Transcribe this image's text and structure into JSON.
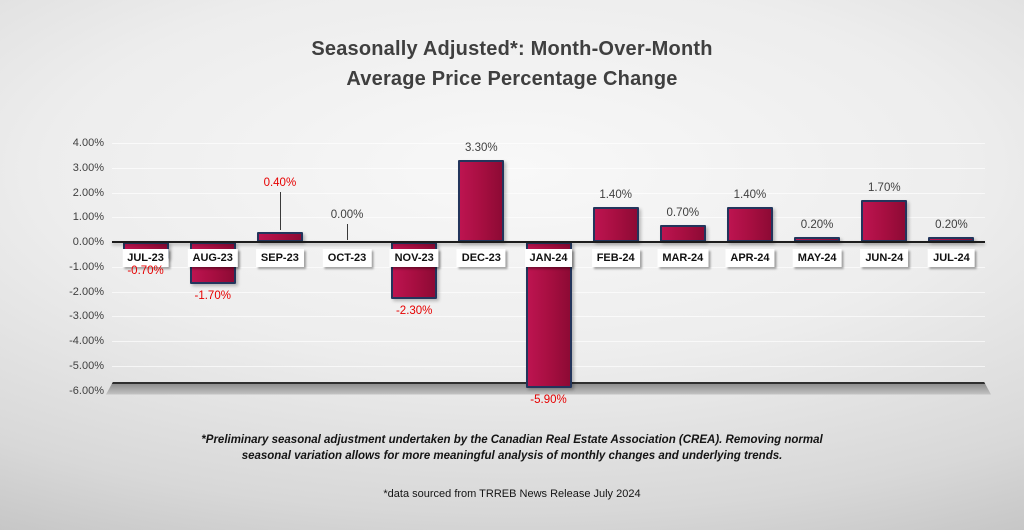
{
  "chart_data": {
    "type": "bar",
    "title_line1": "Seasonally Adjusted*:  Month-Over-Month",
    "title_line2": "Average Price Percentage Change",
    "categories": [
      "JUL-23",
      "AUG-23",
      "SEP-23",
      "OCT-23",
      "NOV-23",
      "DEC-23",
      "JAN-24",
      "FEB-24",
      "MAR-24",
      "APR-24",
      "MAY-24",
      "JUN-24",
      "JUL-24"
    ],
    "values": [
      -0.7,
      -1.7,
      0.4,
      0.0,
      -2.3,
      3.3,
      -5.9,
      1.4,
      0.7,
      1.4,
      0.2,
      1.7,
      0.2
    ],
    "value_labels": [
      "-0.70%",
      "-1.70%",
      "0.40%",
      "0.00%",
      "-2.30%",
      "3.30%",
      "-5.90%",
      "1.40%",
      "0.70%",
      "1.40%",
      "0.20%",
      "1.70%",
      "0.20%"
    ],
    "label_colors": [
      "red",
      "red",
      "red",
      "dark",
      "red",
      "dark",
      "red",
      "dark",
      "dark",
      "dark",
      "dark",
      "dark",
      "dark"
    ],
    "label_placements": [
      "below",
      "below",
      "callout",
      "callout",
      "below",
      "above",
      "below",
      "above",
      "above",
      "above",
      "above",
      "above",
      "above"
    ],
    "ylim": [
      -6,
      4
    ],
    "ytick_step": 1,
    "ytick_labels": [
      "4.00%",
      "3.00%",
      "2.00%",
      "1.00%",
      "0.00%",
      "-1.00%",
      "-2.00%",
      "-3.00%",
      "-4.00%",
      "-5.00%",
      "-6.00%"
    ],
    "bar_color": "#A50E40",
    "bar_border_color": "#23355C",
    "negative_label_color": "#E60000",
    "positive_label_color": "#3F3F3F",
    "legend": "none",
    "grid": "horizontal"
  },
  "footnotes": {
    "line1": "*Preliminary seasonal adjustment undertaken by the Canadian Real Estate Association (CREA).  Removing normal",
    "line2": "seasonal variation allows for more meaningful analysis of monthly changes and underlying trends.",
    "source": "*data sourced from TRREB News Release July 2024"
  }
}
